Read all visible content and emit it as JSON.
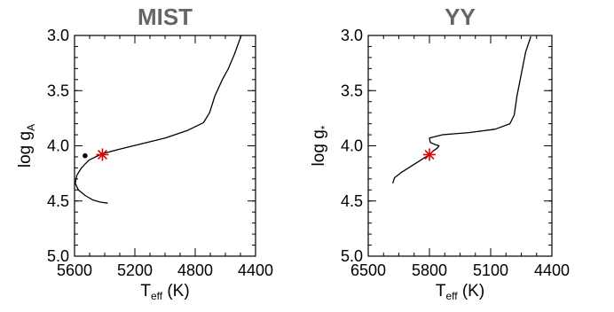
{
  "chart_data": [
    {
      "type": "line",
      "title": "MIST",
      "xlabel": {
        "main": "T",
        "sub": "eff",
        "unit": " (K)"
      },
      "ylabel": {
        "main": "log g",
        "sub": "A"
      },
      "xlim": [
        5600,
        4400
      ],
      "ylim": [
        5.0,
        3.0
      ],
      "y_inverted": true,
      "x_inverted": true,
      "xticks": [
        5600,
        5200,
        4800,
        4400
      ],
      "xtick_labels": [
        "5600",
        "5200",
        "4800",
        "4400"
      ],
      "yticks": [
        3.0,
        3.5,
        4.0,
        4.5,
        5.0
      ],
      "ytick_labels": [
        "3.0",
        "3.5",
        "4.0",
        "4.5",
        "5.0"
      ],
      "grid": false,
      "series": [
        {
          "color": "#000000",
          "points": [
            [
              5380,
              4.52
            ],
            [
              5430,
              4.51
            ],
            [
              5480,
              4.49
            ],
            [
              5530,
              4.45
            ],
            [
              5575,
              4.4
            ],
            [
              5595,
              4.34
            ],
            [
              5585,
              4.27
            ],
            [
              5555,
              4.2
            ],
            [
              5505,
              4.13
            ],
            [
              5460,
              4.1
            ],
            [
              5410,
              4.07
            ],
            [
              5300,
              4.03
            ],
            [
              5150,
              3.98
            ],
            [
              5000,
              3.93
            ],
            [
              4850,
              3.86
            ],
            [
              4745,
              3.79
            ],
            [
              4705,
              3.7
            ],
            [
              4670,
              3.55
            ],
            [
              4620,
              3.4
            ],
            [
              4580,
              3.3
            ],
            [
              4540,
              3.17
            ],
            [
              4495,
              3.0
            ]
          ]
        }
      ],
      "markers": [
        {
          "name": "star",
          "x": 5415,
          "y": 4.08,
          "color": "#dd0000"
        },
        {
          "name": "dot",
          "x": 5530,
          "y": 4.09,
          "color": "#000000"
        }
      ]
    },
    {
      "type": "line",
      "title": "YY",
      "xlabel": {
        "main": "T",
        "sub": "eff",
        "unit": " (K)"
      },
      "ylabel": {
        "main": "log g",
        "sub": "*"
      },
      "xlim": [
        6500,
        4400
      ],
      "ylim": [
        5.0,
        3.0
      ],
      "y_inverted": true,
      "x_inverted": true,
      "xticks": [
        6500,
        5800,
        5100,
        4400
      ],
      "xtick_labels": [
        "6500",
        "5800",
        "5100",
        "4400"
      ],
      "yticks": [
        3.0,
        3.5,
        4.0,
        4.5,
        5.0
      ],
      "ytick_labels": [
        "3.0",
        "3.5",
        "4.0",
        "4.5",
        "5.0"
      ],
      "grid": false,
      "series": [
        {
          "color": "#000000",
          "points": [
            [
              6220,
              4.34
            ],
            [
              6200,
              4.29
            ],
            [
              6120,
              4.24
            ],
            [
              6000,
              4.18
            ],
            [
              5880,
              4.12
            ],
            [
              5800,
              4.08
            ],
            [
              5760,
              4.05
            ],
            [
              5710,
              4.02
            ],
            [
              5690,
              4.0
            ],
            [
              5730,
              3.99
            ],
            [
              5790,
              3.97
            ],
            [
              5800,
              3.93
            ],
            [
              5650,
              3.9
            ],
            [
              5350,
              3.88
            ],
            [
              5050,
              3.85
            ],
            [
              4880,
              3.8
            ],
            [
              4830,
              3.72
            ],
            [
              4800,
              3.55
            ],
            [
              4750,
              3.35
            ],
            [
              4700,
              3.15
            ],
            [
              4640,
              3.01
            ]
          ]
        }
      ],
      "markers": [
        {
          "name": "star",
          "x": 5800,
          "y": 4.08,
          "color": "#dd0000"
        }
      ]
    }
  ]
}
